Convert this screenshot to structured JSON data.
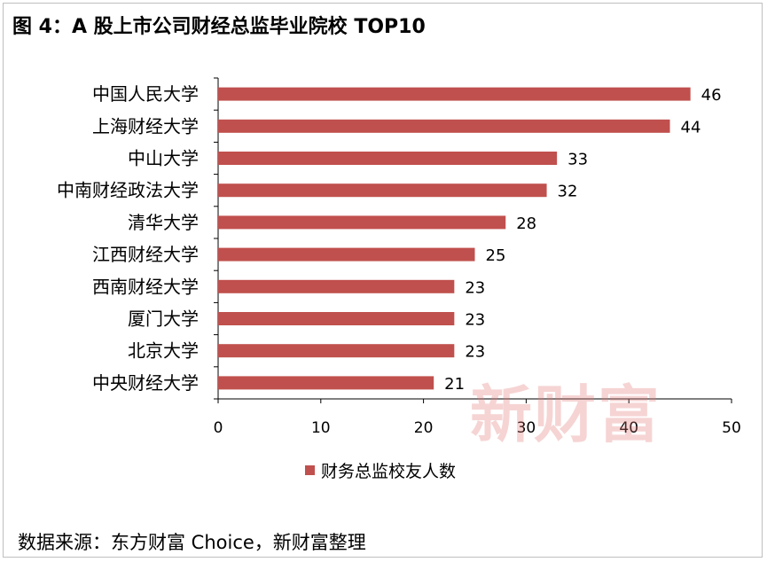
{
  "title": "图 4：A 股上市公司财经总监毕业院校 TOP10",
  "source": "数据来源：东方财富 Choice，新财富整理",
  "watermark": "新财富",
  "colors": {
    "bar": "#c0504d",
    "axis": "#000000"
  },
  "chart_data": {
    "type": "bar",
    "orientation": "horizontal",
    "categories": [
      "中国人民大学",
      "上海财经大学",
      "中山大学",
      "中南财经政法大学",
      "清华大学",
      "江西财经大学",
      "西南财经大学",
      "厦门大学",
      "北京大学",
      "中央财经大学"
    ],
    "series": [
      {
        "name": "财务总监校友人数",
        "values": [
          46,
          44,
          33,
          32,
          28,
          25,
          23,
          23,
          23,
          21
        ]
      }
    ],
    "xlim": [
      0,
      50
    ],
    "xticks": [
      0,
      10,
      20,
      30,
      40,
      50
    ],
    "grid": false,
    "legend": "bottom",
    "data_labels": true
  }
}
